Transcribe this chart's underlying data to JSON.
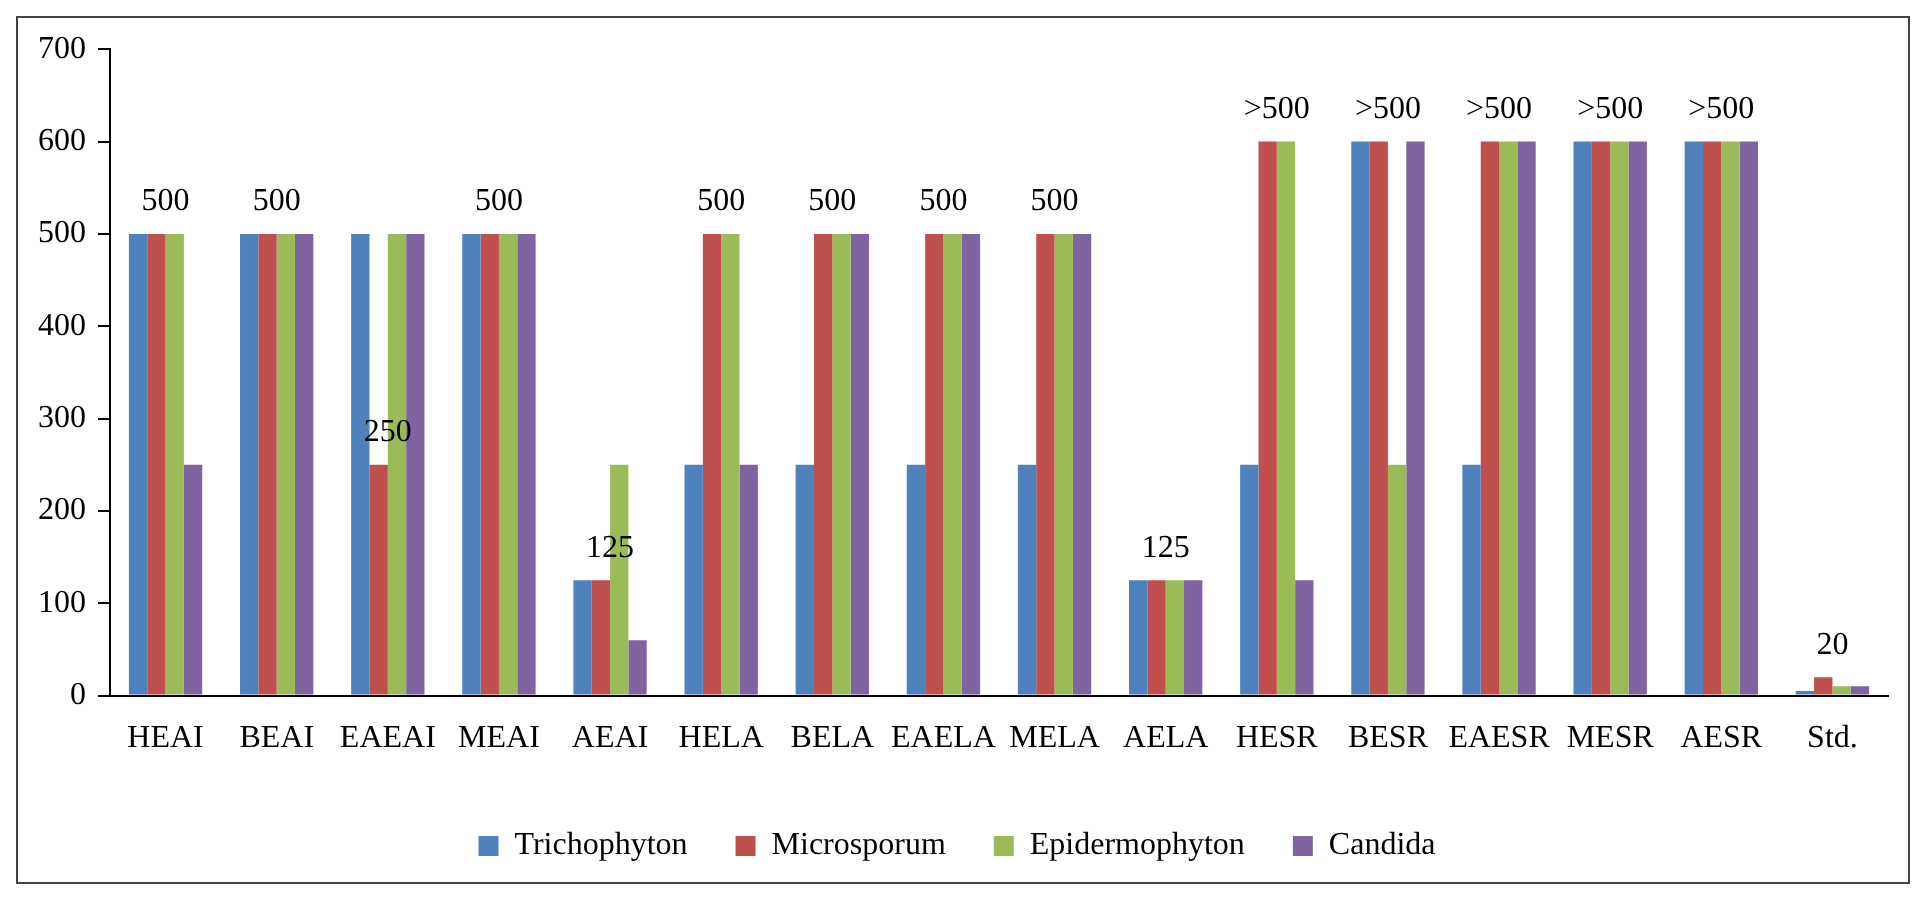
{
  "chart_data": {
    "type": "bar",
    "categories": [
      "HEAI",
      "BEAI",
      "EAEAI",
      "MEAI",
      "AEAI",
      "HELA",
      "BELA",
      "EAELA",
      "MELA",
      "AELA",
      "HESR",
      "BESR",
      "EAESR",
      "MESR",
      "AESR",
      "Std."
    ],
    "series": [
      {
        "name": "Trichophyton",
        "color": "#4f81bd",
        "values": [
          500,
          500,
          500,
          500,
          125,
          250,
          250,
          250,
          250,
          125,
          250,
          600,
          250,
          600,
          600,
          5
        ]
      },
      {
        "name": "Microsporum",
        "color": "#c0504d",
        "values": [
          500,
          500,
          250,
          500,
          125,
          500,
          500,
          500,
          500,
          125,
          600,
          600,
          600,
          600,
          600,
          20
        ]
      },
      {
        "name": "Epidermophyton",
        "color": "#9bbb59",
        "values": [
          500,
          500,
          500,
          500,
          250,
          500,
          500,
          500,
          500,
          125,
          600,
          250,
          600,
          600,
          600,
          10
        ]
      },
      {
        "name": "Candida",
        "color": "#8064a2",
        "values": [
          250,
          500,
          500,
          500,
          60,
          250,
          500,
          500,
          500,
          125,
          125,
          600,
          600,
          600,
          600,
          10
        ]
      }
    ],
    "ylim": [
      0,
      700
    ],
    "yticks": [
      0,
      100,
      200,
      300,
      400,
      500,
      600,
      700
    ],
    "grid": false,
    "legend": "bottom",
    "annotations": [
      {
        "text": "500",
        "x": "HEAI",
        "y": 500
      },
      {
        "text": "500",
        "x": "BEAI",
        "y": 500
      },
      {
        "text": "250",
        "x": "EAEAI",
        "y": 250
      },
      {
        "text": "500",
        "x": "MEAI",
        "y": 500
      },
      {
        "text": "125",
        "x": "AEAI",
        "y": 125
      },
      {
        "text": "500",
        "x": "HELA",
        "y": 500
      },
      {
        "text": "500",
        "x": "BELA",
        "y": 500
      },
      {
        "text": "500",
        "x": "EAELA",
        "y": 500
      },
      {
        "text": "500",
        "x": "MELA",
        "y": 500
      },
      {
        "text": "125",
        "x": "AELA",
        "y": 125
      },
      {
        "text": ">500",
        "x": "HESR",
        "y": 600
      },
      {
        "text": ">500",
        "x": "BESR",
        "y": 600
      },
      {
        "text": ">500",
        "x": "EAESR",
        "y": 600
      },
      {
        "text": ">500",
        "x": "MESR",
        "y": 600
      },
      {
        "text": ">500",
        "x": "AESR",
        "y": 600
      },
      {
        "text": "20",
        "x": "Std.",
        "y": 20
      }
    ]
  }
}
